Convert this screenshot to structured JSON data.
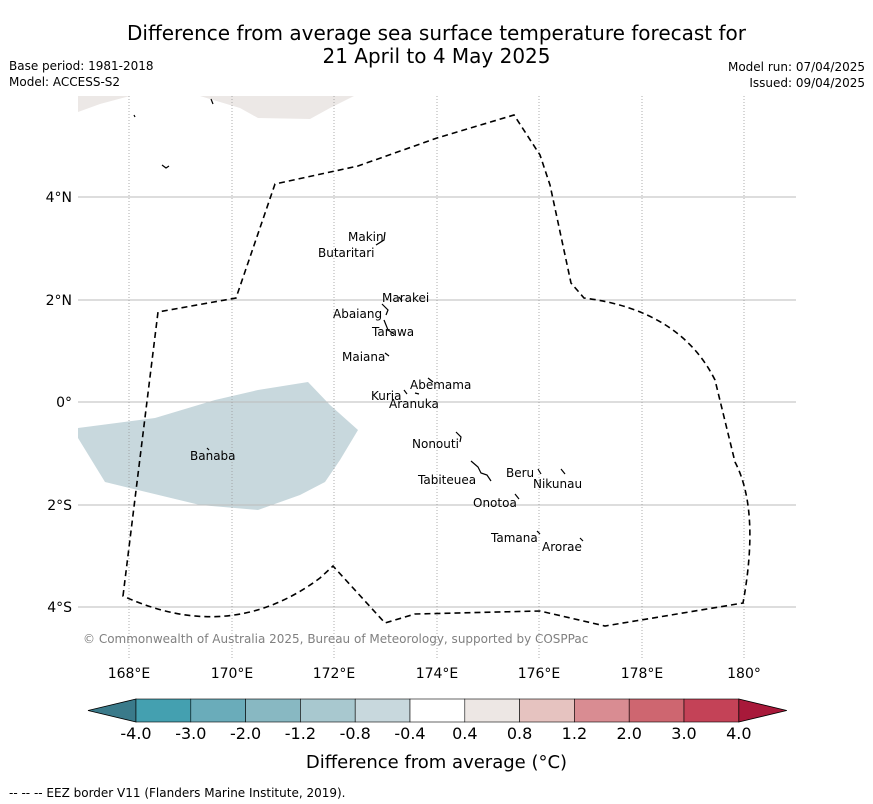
{
  "header": {
    "title_line1": "Difference from average sea surface temperature forecast for",
    "title_line2": "21 April to 4 May 2025",
    "base_period": "Base period: 1981-2018",
    "model": "Model: ACCESS-S2",
    "model_run": "Model run: 07/04/2025",
    "issued": "Issued: 09/04/2025"
  },
  "map": {
    "lon_ticks": [
      "168°E",
      "170°E",
      "172°E",
      "174°E",
      "176°E",
      "178°E",
      "180°"
    ],
    "lat_ticks": [
      "4°N",
      "2°N",
      "0°",
      "2°S",
      "4°S"
    ],
    "islands": [
      {
        "name": "Makin",
        "lon": 172.9,
        "lat": 3.1
      },
      {
        "name": "Butaritari",
        "lon": 172.8,
        "lat": 3.0
      },
      {
        "name": "Marakei",
        "lon": 173.3,
        "lat": 2.0
      },
      {
        "name": "Abaiang",
        "lon": 172.95,
        "lat": 1.85
      },
      {
        "name": "Tarawa",
        "lon": 173.0,
        "lat": 1.4
      },
      {
        "name": "Maiana",
        "lon": 173.0,
        "lat": 0.9
      },
      {
        "name": "Abemama",
        "lon": 173.85,
        "lat": 0.4
      },
      {
        "name": "Kuria",
        "lon": 173.4,
        "lat": 0.2
      },
      {
        "name": "Aranuka",
        "lon": 173.6,
        "lat": 0.15
      },
      {
        "name": "Nonouti",
        "lon": 174.4,
        "lat": -0.65
      },
      {
        "name": "Banaba",
        "lon": 169.5,
        "lat": -0.85
      },
      {
        "name": "Tabiteuea",
        "lon": 174.8,
        "lat": -1.3
      },
      {
        "name": "Beru",
        "lon": 175.98,
        "lat": -1.33
      },
      {
        "name": "Nikunau",
        "lon": 176.45,
        "lat": -1.35
      },
      {
        "name": "Onotoa",
        "lon": 175.55,
        "lat": -1.8
      },
      {
        "name": "Tamana",
        "lon": 175.98,
        "lat": -2.5
      },
      {
        "name": "Arorae",
        "lon": 176.8,
        "lat": -2.64
      }
    ],
    "copyright": "© Commonwealth of Australia 2025, Bureau of Meteorology, supported by COSPPac",
    "eez_line_color": "#000000"
  },
  "colorbar": {
    "title": "Difference from average (°C)",
    "tick_labels": [
      "-4.0",
      "-3.0",
      "-2.0",
      "-1.2",
      "-0.8",
      "-0.4",
      "0.4",
      "0.8",
      "1.2",
      "2.0",
      "3.0",
      "4.0"
    ],
    "under_color": "#3a7a8a",
    "over_color": "#a8193a",
    "colors": [
      "#44a0b0",
      "#6aacba",
      "#88b8c2",
      "#a8c8cf",
      "#c8d8dd",
      "#ffffff",
      "#ede7e4",
      "#e6c3c0",
      "#d98c92",
      "#ce6670",
      "#c44257"
    ]
  },
  "legend": {
    "footnote": "--  --  -- EEZ border V11 (Flanders Marine Institute, 2019)."
  }
}
